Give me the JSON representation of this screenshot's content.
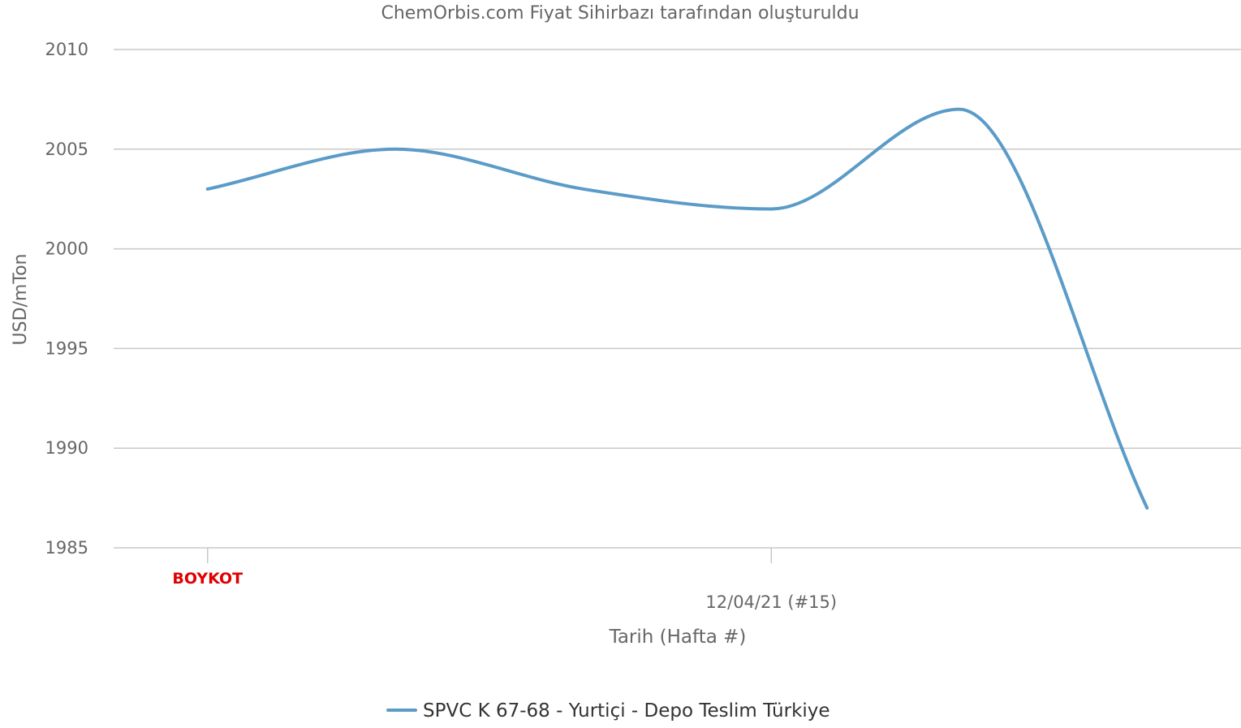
{
  "chart_data": {
    "type": "line",
    "subtitle": "ChemOrbis.com Fiyat Sihirbazı tarafından oluşturuldu",
    "ylabel": "USD/mTon",
    "xlabel": "Tarih (Hafta #)",
    "ylim": [
      1985,
      2010
    ],
    "yticks": [
      "2010",
      "2005",
      "2000",
      "1995",
      "1990",
      "1985"
    ],
    "grid": true,
    "x_index": [
      0,
      1,
      2,
      3,
      4,
      5
    ],
    "xlim": [
      -0.5,
      5.5
    ],
    "x_labeled_ticks": [
      {
        "index": 0,
        "label": "BOYKOT",
        "color": "#e00000"
      },
      {
        "index": 3,
        "label": "12/04/21 (#15)"
      }
    ],
    "series": [
      {
        "name": "SPVC K 67-68 - Yurtiçi - Depo Teslim Türkiye",
        "color": "#5b9bc8",
        "values": [
          2003,
          2005,
          2003,
          2002,
          2007,
          1987
        ]
      }
    ],
    "legend": "bottom-center"
  }
}
